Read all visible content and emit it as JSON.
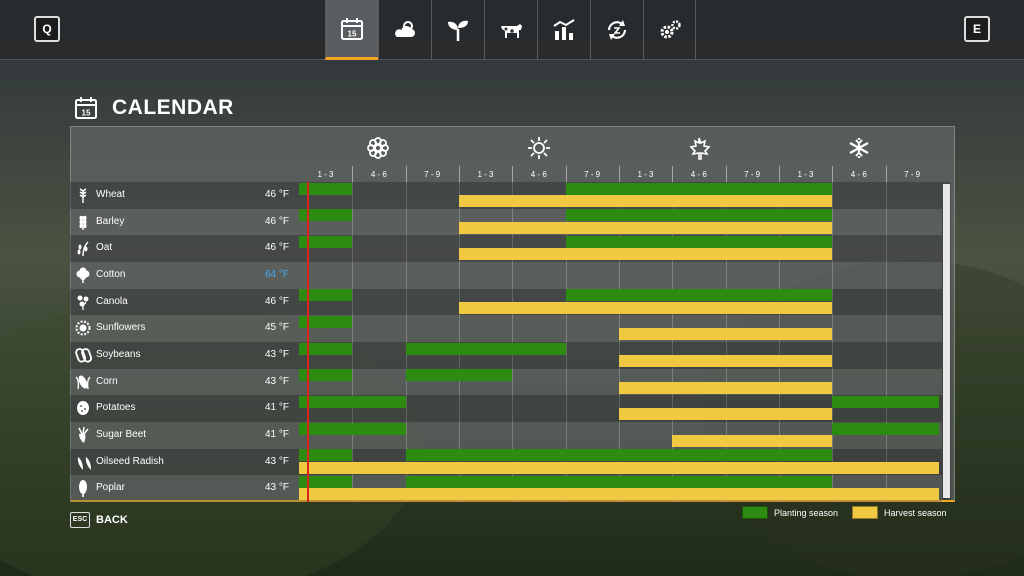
{
  "topbar": {
    "left_key": "Q",
    "right_key": "E",
    "tabs": [
      {
        "icon": "calendar-icon",
        "active": true,
        "day": "15"
      },
      {
        "icon": "weather-icon",
        "active": false
      },
      {
        "icon": "sprout-icon",
        "active": false
      },
      {
        "icon": "cow-icon",
        "active": false
      },
      {
        "icon": "stats-chart-icon",
        "active": false
      },
      {
        "icon": "cycle-icon",
        "active": false
      },
      {
        "icon": "settings-gears-icon",
        "active": false
      }
    ]
  },
  "header": {
    "title": "CALENDAR",
    "icon_day": "15"
  },
  "calendar": {
    "months": [
      "1 - 3",
      "4 - 6",
      "7 - 9",
      "1 - 3",
      "4 - 6",
      "7 - 9",
      "1 - 3",
      "4 - 6",
      "7 - 9",
      "1 - 3",
      "4 - 6",
      "7 - 9"
    ],
    "seasons": [
      "spring-flower-icon",
      "summer-sun-icon",
      "autumn-leaf-icon",
      "winter-snowflake-icon"
    ],
    "crops": [
      {
        "name": "Wheat",
        "temp": "46 °F",
        "icon": "wheat-icon",
        "plant": [
          [
            0,
            1
          ],
          [
            5,
            10
          ]
        ],
        "harvest": [
          [
            3,
            10
          ]
        ]
      },
      {
        "name": "Barley",
        "temp": "46 °F",
        "icon": "barley-icon",
        "plant": [
          [
            0,
            1
          ],
          [
            5,
            10
          ]
        ],
        "harvest": [
          [
            3,
            10
          ]
        ]
      },
      {
        "name": "Oat",
        "temp": "46 °F",
        "icon": "oat-icon",
        "plant": [
          [
            0,
            1
          ],
          [
            5,
            10
          ]
        ],
        "harvest": [
          [
            3,
            10
          ]
        ]
      },
      {
        "name": "Cotton",
        "temp": "64 °F",
        "icon": "cotton-icon",
        "plant": [],
        "harvest": [],
        "temp_highlight": true
      },
      {
        "name": "Canola",
        "temp": "46 °F",
        "icon": "canola-icon",
        "plant": [
          [
            0,
            1
          ],
          [
            5,
            10
          ]
        ],
        "harvest": [
          [
            3,
            10
          ]
        ]
      },
      {
        "name": "Sunflowers",
        "temp": "45 °F",
        "icon": "sunflower-icon",
        "plant": [
          [
            0,
            1
          ]
        ],
        "harvest": [
          [
            6,
            10
          ]
        ]
      },
      {
        "name": "Soybeans",
        "temp": "43 °F",
        "icon": "soybean-icon",
        "plant": [
          [
            0,
            1
          ],
          [
            2,
            5
          ]
        ],
        "harvest": [
          [
            6,
            10
          ]
        ]
      },
      {
        "name": "Corn",
        "temp": "43 °F",
        "icon": "corn-icon",
        "plant": [
          [
            0,
            1
          ],
          [
            2,
            4
          ]
        ],
        "harvest": [
          [
            6,
            10
          ]
        ]
      },
      {
        "name": "Potatoes",
        "temp": "41 °F",
        "icon": "potato-icon",
        "plant": [
          [
            0,
            2
          ],
          [
            10,
            12
          ]
        ],
        "harvest": [
          [
            6,
            10
          ]
        ]
      },
      {
        "name": "Sugar Beet",
        "temp": "41 °F",
        "icon": "sugar-beet-icon",
        "plant": [
          [
            0,
            2
          ],
          [
            10,
            12
          ]
        ],
        "harvest": [
          [
            7,
            10
          ]
        ]
      },
      {
        "name": "Oilseed Radish",
        "temp": "43 °F",
        "icon": "radish-icon",
        "plant": [
          [
            0,
            1
          ],
          [
            2,
            10
          ]
        ],
        "harvest": [
          [
            0,
            12
          ]
        ]
      },
      {
        "name": "Poplar",
        "temp": "43 °F",
        "icon": "poplar-icon",
        "plant": [
          [
            0,
            1
          ],
          [
            2,
            10
          ]
        ],
        "harvest": [
          [
            0,
            12
          ]
        ]
      }
    ]
  },
  "footer": {
    "esc_key": "ESC",
    "back_label": "BACK",
    "legend_planting": "Planting season",
    "legend_harvest": "Harvest season"
  },
  "colors": {
    "planting": "#2e8b12",
    "harvest": "#f1c841",
    "accent": "#f5a623",
    "today": "#d9261c",
    "temp_highlight": "#3fa9f5"
  }
}
